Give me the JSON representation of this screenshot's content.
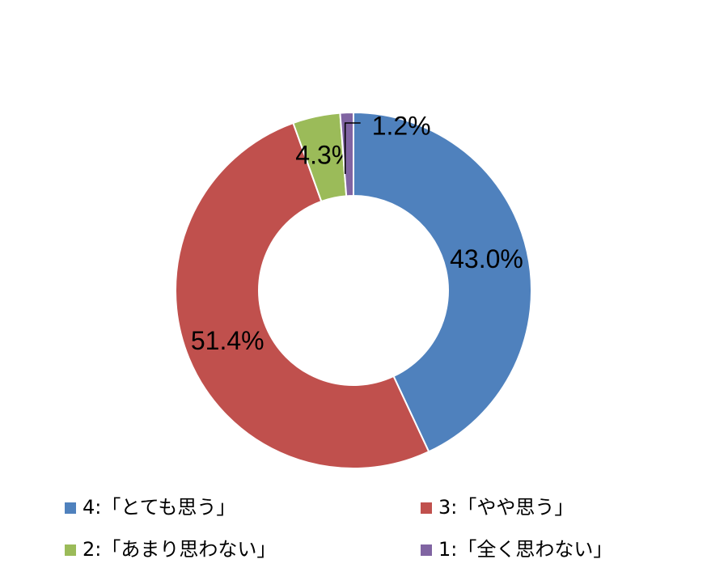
{
  "chart_data": {
    "type": "donut",
    "categories": [
      "4:「とても思う」",
      "3:「やや思う」",
      "2:「あまり思わない」",
      "1:「全く思わない」"
    ],
    "values": [
      43.0,
      51.4,
      4.3,
      1.2
    ],
    "value_labels": [
      "43.0%",
      "51.4%",
      "4.3%",
      "1.2%"
    ],
    "colors": [
      "#4f81bd",
      "#c0504d",
      "#9bbb59",
      "#8064a2"
    ]
  }
}
